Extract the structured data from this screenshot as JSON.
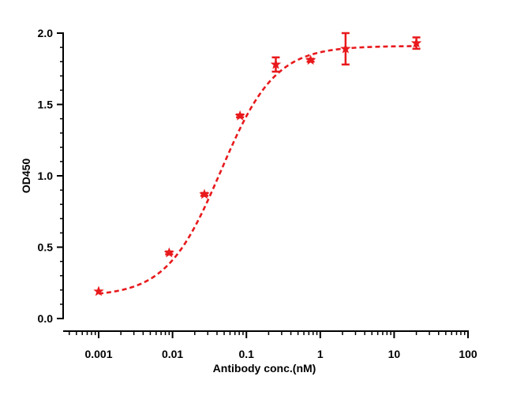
{
  "chart_data": {
    "type": "scatter",
    "title": "",
    "xlabel": "Antibody conc.(nM)",
    "ylabel": "OD450",
    "x_scale": "log",
    "xlim": [
      0.001,
      100
    ],
    "ylim": [
      0,
      2.0
    ],
    "x_ticks": [
      0.001,
      0.01,
      0.1,
      1,
      10,
      100
    ],
    "x_tick_labels": [
      "0.001",
      "0.01",
      "0.1",
      "1",
      "10",
      "100"
    ],
    "y_ticks": [
      0,
      0.5,
      1.0,
      1.5,
      2.0
    ],
    "y_tick_labels": [
      "0.0",
      "0.5",
      "1.0",
      "1.5",
      "2.0"
    ],
    "grid": false,
    "legend": "none",
    "series": [
      {
        "marker": "star",
        "color": "#e8191c",
        "x": [
          0.001,
          0.009,
          0.027,
          0.082,
          0.25,
          0.74,
          2.2,
          20
        ],
        "y": [
          0.19,
          0.46,
          0.87,
          1.42,
          1.78,
          1.81,
          1.89,
          1.93
        ],
        "error": [
          0.0,
          0.01,
          0.01,
          0.01,
          0.05,
          0.01,
          0.11,
          0.04
        ]
      }
    ],
    "fit_curve": {
      "model": "4PL",
      "bottom": 0.155,
      "top": 1.91,
      "ec50": 0.045,
      "hill": 1.18,
      "style": "dashed",
      "color": "#e8191c"
    }
  }
}
